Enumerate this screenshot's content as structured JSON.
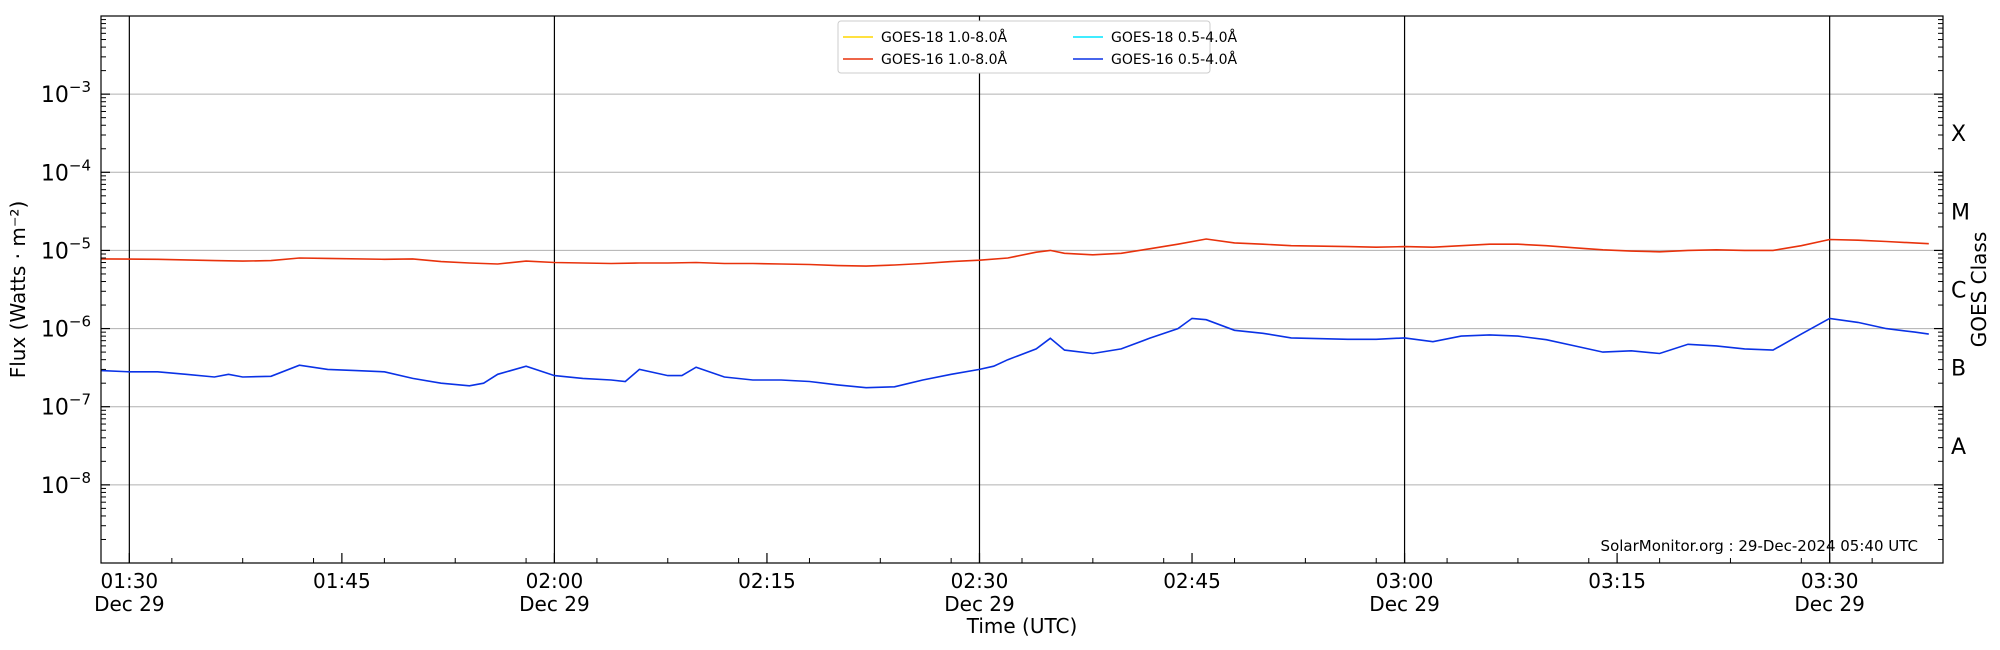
{
  "chart_data": {
    "type": "line",
    "title": "",
    "xlabel": "Time (UTC)",
    "ylabel": "Flux (Watts · m⁻²)",
    "y2label": "GOES Class",
    "yscale": "log",
    "ylim": [
      1e-09,
      0.01
    ],
    "xlim": [
      "01:28",
      "03:38"
    ],
    "xaxis_unit": "minutes",
    "x_ticks": [
      {
        "time": "01:30",
        "label": "01:30",
        "date": "Dec 29"
      },
      {
        "time": "01:45",
        "label": "01:45",
        "date": ""
      },
      {
        "time": "02:00",
        "label": "02:00",
        "date": "Dec 29"
      },
      {
        "time": "02:15",
        "label": "02:15",
        "date": ""
      },
      {
        "time": "02:30",
        "label": "02:30",
        "date": "Dec 29"
      },
      {
        "time": "02:45",
        "label": "02:45",
        "date": ""
      },
      {
        "time": "03:00",
        "label": "03:00",
        "date": "Dec 29"
      },
      {
        "time": "03:15",
        "label": "03:15",
        "date": ""
      },
      {
        "time": "03:30",
        "label": "03:30",
        "date": "Dec 29"
      }
    ],
    "y_ticks": [
      {
        "value": 1e-08,
        "label": "10",
        "exp": "−8"
      },
      {
        "value": 1e-07,
        "label": "10",
        "exp": "−7"
      },
      {
        "value": 1e-06,
        "label": "10",
        "exp": "−6"
      },
      {
        "value": 1e-05,
        "label": "10",
        "exp": "−5"
      },
      {
        "value": 0.0001,
        "label": "10",
        "exp": "−4"
      },
      {
        "value": 0.001,
        "label": "10",
        "exp": "−3"
      }
    ],
    "class_labels": [
      {
        "label": "A",
        "value": 3.16e-08
      },
      {
        "label": "B",
        "value": 3.16e-07
      },
      {
        "label": "C",
        "value": 3.16e-06
      },
      {
        "label": "M",
        "value": 3.16e-05
      },
      {
        "label": "X",
        "value": 0.000316
      }
    ],
    "vertical_lines": [
      "01:30",
      "02:00",
      "02:30",
      "03:00",
      "03:30"
    ],
    "grid": "horizontal at decades",
    "legend_position": "top-center",
    "annotation": "SolarMonitor.org : 29-Dec-2024 05:40 UTC",
    "series": [
      {
        "name": "GOES-18 1.0-8.0Å",
        "color": "#ffd700",
        "x": [],
        "values": []
      },
      {
        "name": "GOES-18 0.5-4.0Å",
        "color": "#00e5ff",
        "x": [],
        "values": []
      },
      {
        "name": "GOES-16 1.0-8.0Å",
        "color": "#e8320c",
        "x": [
          "01:28",
          "01:32",
          "01:36",
          "01:38",
          "01:40",
          "01:42",
          "01:44",
          "01:48",
          "01:50",
          "01:52",
          "01:54",
          "01:56",
          "01:58",
          "02:00",
          "02:02",
          "02:04",
          "02:06",
          "02:08",
          "02:10",
          "02:12",
          "02:14",
          "02:16",
          "02:18",
          "02:20",
          "02:22",
          "02:24",
          "02:26",
          "02:28",
          "02:30",
          "02:32",
          "02:34",
          "02:35",
          "02:36",
          "02:38",
          "02:40",
          "02:42",
          "02:44",
          "02:46",
          "02:48",
          "02:50",
          "02:52",
          "02:56",
          "02:58",
          "03:00",
          "03:02",
          "03:04",
          "03:06",
          "03:08",
          "03:10",
          "03:12",
          "03:14",
          "03:16",
          "03:18",
          "03:20",
          "03:22",
          "03:24",
          "03:26",
          "03:28",
          "03:30",
          "03:32",
          "03:34",
          "03:37"
        ],
        "values": [
          7.8e-06,
          7.7e-06,
          7.4e-06,
          7.3e-06,
          7.4e-06,
          8e-06,
          7.9e-06,
          7.7e-06,
          7.8e-06,
          7.2e-06,
          6.9e-06,
          6.7e-06,
          7.3e-06,
          7e-06,
          6.9e-06,
          6.8e-06,
          6.9e-06,
          6.9e-06,
          7e-06,
          6.8e-06,
          6.8e-06,
          6.7e-06,
          6.6e-06,
          6.4e-06,
          6.3e-06,
          6.5e-06,
          6.8e-06,
          7.2e-06,
          7.5e-06,
          8e-06,
          9.5e-06,
          1e-05,
          9.2e-06,
          8.8e-06,
          9.2e-06,
          1.05e-05,
          1.2e-05,
          1.4e-05,
          1.25e-05,
          1.2e-05,
          1.15e-05,
          1.12e-05,
          1.1e-05,
          1.12e-05,
          1.1e-05,
          1.15e-05,
          1.2e-05,
          1.2e-05,
          1.15e-05,
          1.08e-05,
          1.02e-05,
          9.8e-06,
          9.6e-06,
          1e-05,
          1.02e-05,
          1e-05,
          1e-05,
          1.15e-05,
          1.38e-05,
          1.35e-05,
          1.3e-05,
          1.22e-05
        ]
      },
      {
        "name": "GOES-16 0.5-4.0Å",
        "color": "#0a32e6",
        "x": [
          "01:28",
          "01:30",
          "01:32",
          "01:34",
          "01:36",
          "01:37",
          "01:38",
          "01:40",
          "01:42",
          "01:44",
          "01:46",
          "01:48",
          "01:50",
          "01:52",
          "01:54",
          "01:55",
          "01:56",
          "01:58",
          "02:00",
          "02:02",
          "02:04",
          "02:05",
          "02:06",
          "02:08",
          "02:09",
          "02:10",
          "02:12",
          "02:14",
          "02:16",
          "02:18",
          "02:20",
          "02:22",
          "02:24",
          "02:26",
          "02:28",
          "02:30",
          "02:31",
          "02:32",
          "02:34",
          "02:35",
          "02:36",
          "02:38",
          "02:40",
          "02:42",
          "02:44",
          "02:45",
          "02:46",
          "02:48",
          "02:50",
          "02:52",
          "02:56",
          "02:58",
          "03:00",
          "03:02",
          "03:04",
          "03:06",
          "03:08",
          "03:10",
          "03:12",
          "03:14",
          "03:16",
          "03:18",
          "03:20",
          "03:22",
          "03:24",
          "03:26",
          "03:28",
          "03:30",
          "03:32",
          "03:34",
          "03:36",
          "03:37"
        ],
        "values": [
          2.9e-07,
          2.8e-07,
          2.8e-07,
          2.6e-07,
          2.4e-07,
          2.6e-07,
          2.4e-07,
          2.45e-07,
          3.4e-07,
          3e-07,
          2.9e-07,
          2.8e-07,
          2.3e-07,
          2e-07,
          1.85e-07,
          2e-07,
          2.6e-07,
          3.3e-07,
          2.5e-07,
          2.3e-07,
          2.2e-07,
          2.1e-07,
          3e-07,
          2.5e-07,
          2.5e-07,
          3.2e-07,
          2.4e-07,
          2.2e-07,
          2.2e-07,
          2.1e-07,
          1.9e-07,
          1.75e-07,
          1.8e-07,
          2.2e-07,
          2.6e-07,
          3e-07,
          3.3e-07,
          4e-07,
          5.5e-07,
          7.5e-07,
          5.3e-07,
          4.8e-07,
          5.5e-07,
          7.5e-07,
          1e-06,
          1.35e-06,
          1.3e-06,
          9.5e-07,
          8.7e-07,
          7.6e-07,
          7.3e-07,
          7.3e-07,
          7.6e-07,
          6.8e-07,
          8e-07,
          8.3e-07,
          8e-07,
          7.2e-07,
          6e-07,
          5e-07,
          5.2e-07,
          4.8e-07,
          6.3e-07,
          6e-07,
          5.5e-07,
          5.3e-07,
          8.5e-07,
          1.35e-06,
          1.2e-06,
          1e-06,
          9e-07,
          8.5e-07
        ]
      }
    ]
  }
}
